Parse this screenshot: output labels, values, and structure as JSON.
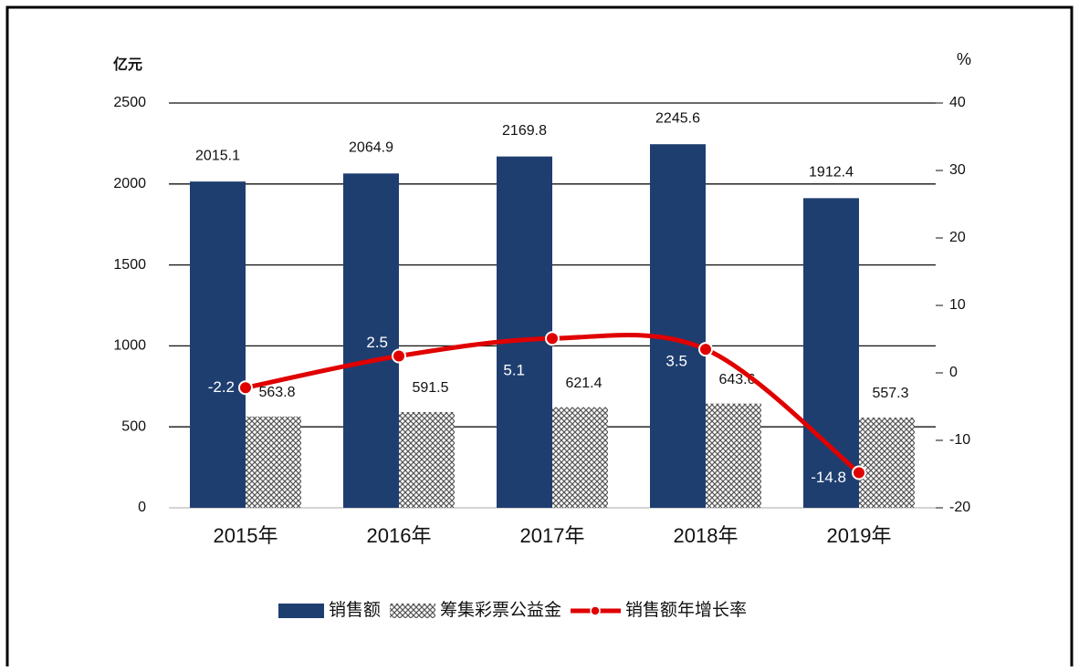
{
  "chart_data": {
    "type": "bar",
    "y_label": "亿元",
    "y2_label": "%",
    "categories": [
      "2015年",
      "2016年",
      "2017年",
      "2018年",
      "2019年"
    ],
    "series": [
      {
        "name": "销售额",
        "type": "bar",
        "color": "#1f3e70",
        "values": [
          2015.1,
          2064.9,
          2169.8,
          2245.6,
          1912.4
        ]
      },
      {
        "name": "筹集彩票公益金",
        "type": "bar",
        "color": "#555555",
        "pattern": "crosshatch",
        "values": [
          563.8,
          591.5,
          621.4,
          643.6,
          557.3
        ]
      },
      {
        "name": "销售额年增长率",
        "type": "line",
        "axis": "y2",
        "color": "#e00000",
        "values": [
          -2.2,
          2.5,
          5.1,
          3.5,
          -14.8
        ]
      }
    ],
    "ylim": [
      0,
      2500
    ],
    "yticks": [
      0,
      500,
      1000,
      1500,
      2000,
      2500
    ],
    "y2lim": [
      -20,
      40
    ],
    "y2ticks": [
      -20,
      -10,
      0,
      10,
      20,
      30,
      40
    ],
    "grid": true,
    "legend": "bottom"
  }
}
